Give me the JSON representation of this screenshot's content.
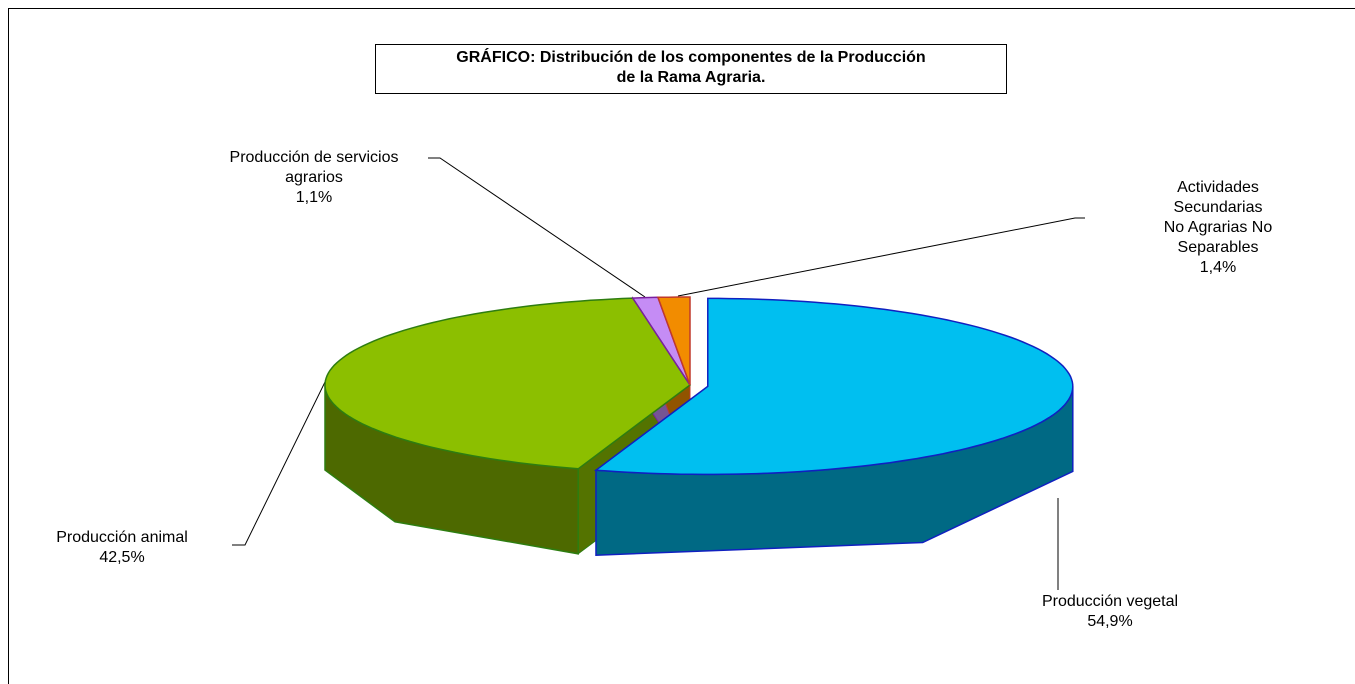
{
  "chart_data": {
    "type": "pie3d",
    "title": "GRÁFICO: Distribución  de los componentes de la Producción\nde la Rama Agraria.",
    "categories": [
      "Producción vegetal",
      "Producción animal",
      "Producción de servicios\nagrarios",
      "Actividades Secundarias\nNo Agrarias No Separables"
    ],
    "values": [
      54.9,
      42.5,
      1.1,
      1.4
    ],
    "value_labels": [
      "54,9%",
      "42,5%",
      "1,1%",
      "1,4%"
    ],
    "colors": [
      "#00bff0",
      "#8cbf00",
      "#c58cf5",
      "#f28c00"
    ],
    "edge_colors": [
      "#1020c0",
      "#2e7d10",
      "#7a1f9f",
      "#c0392b"
    ]
  }
}
